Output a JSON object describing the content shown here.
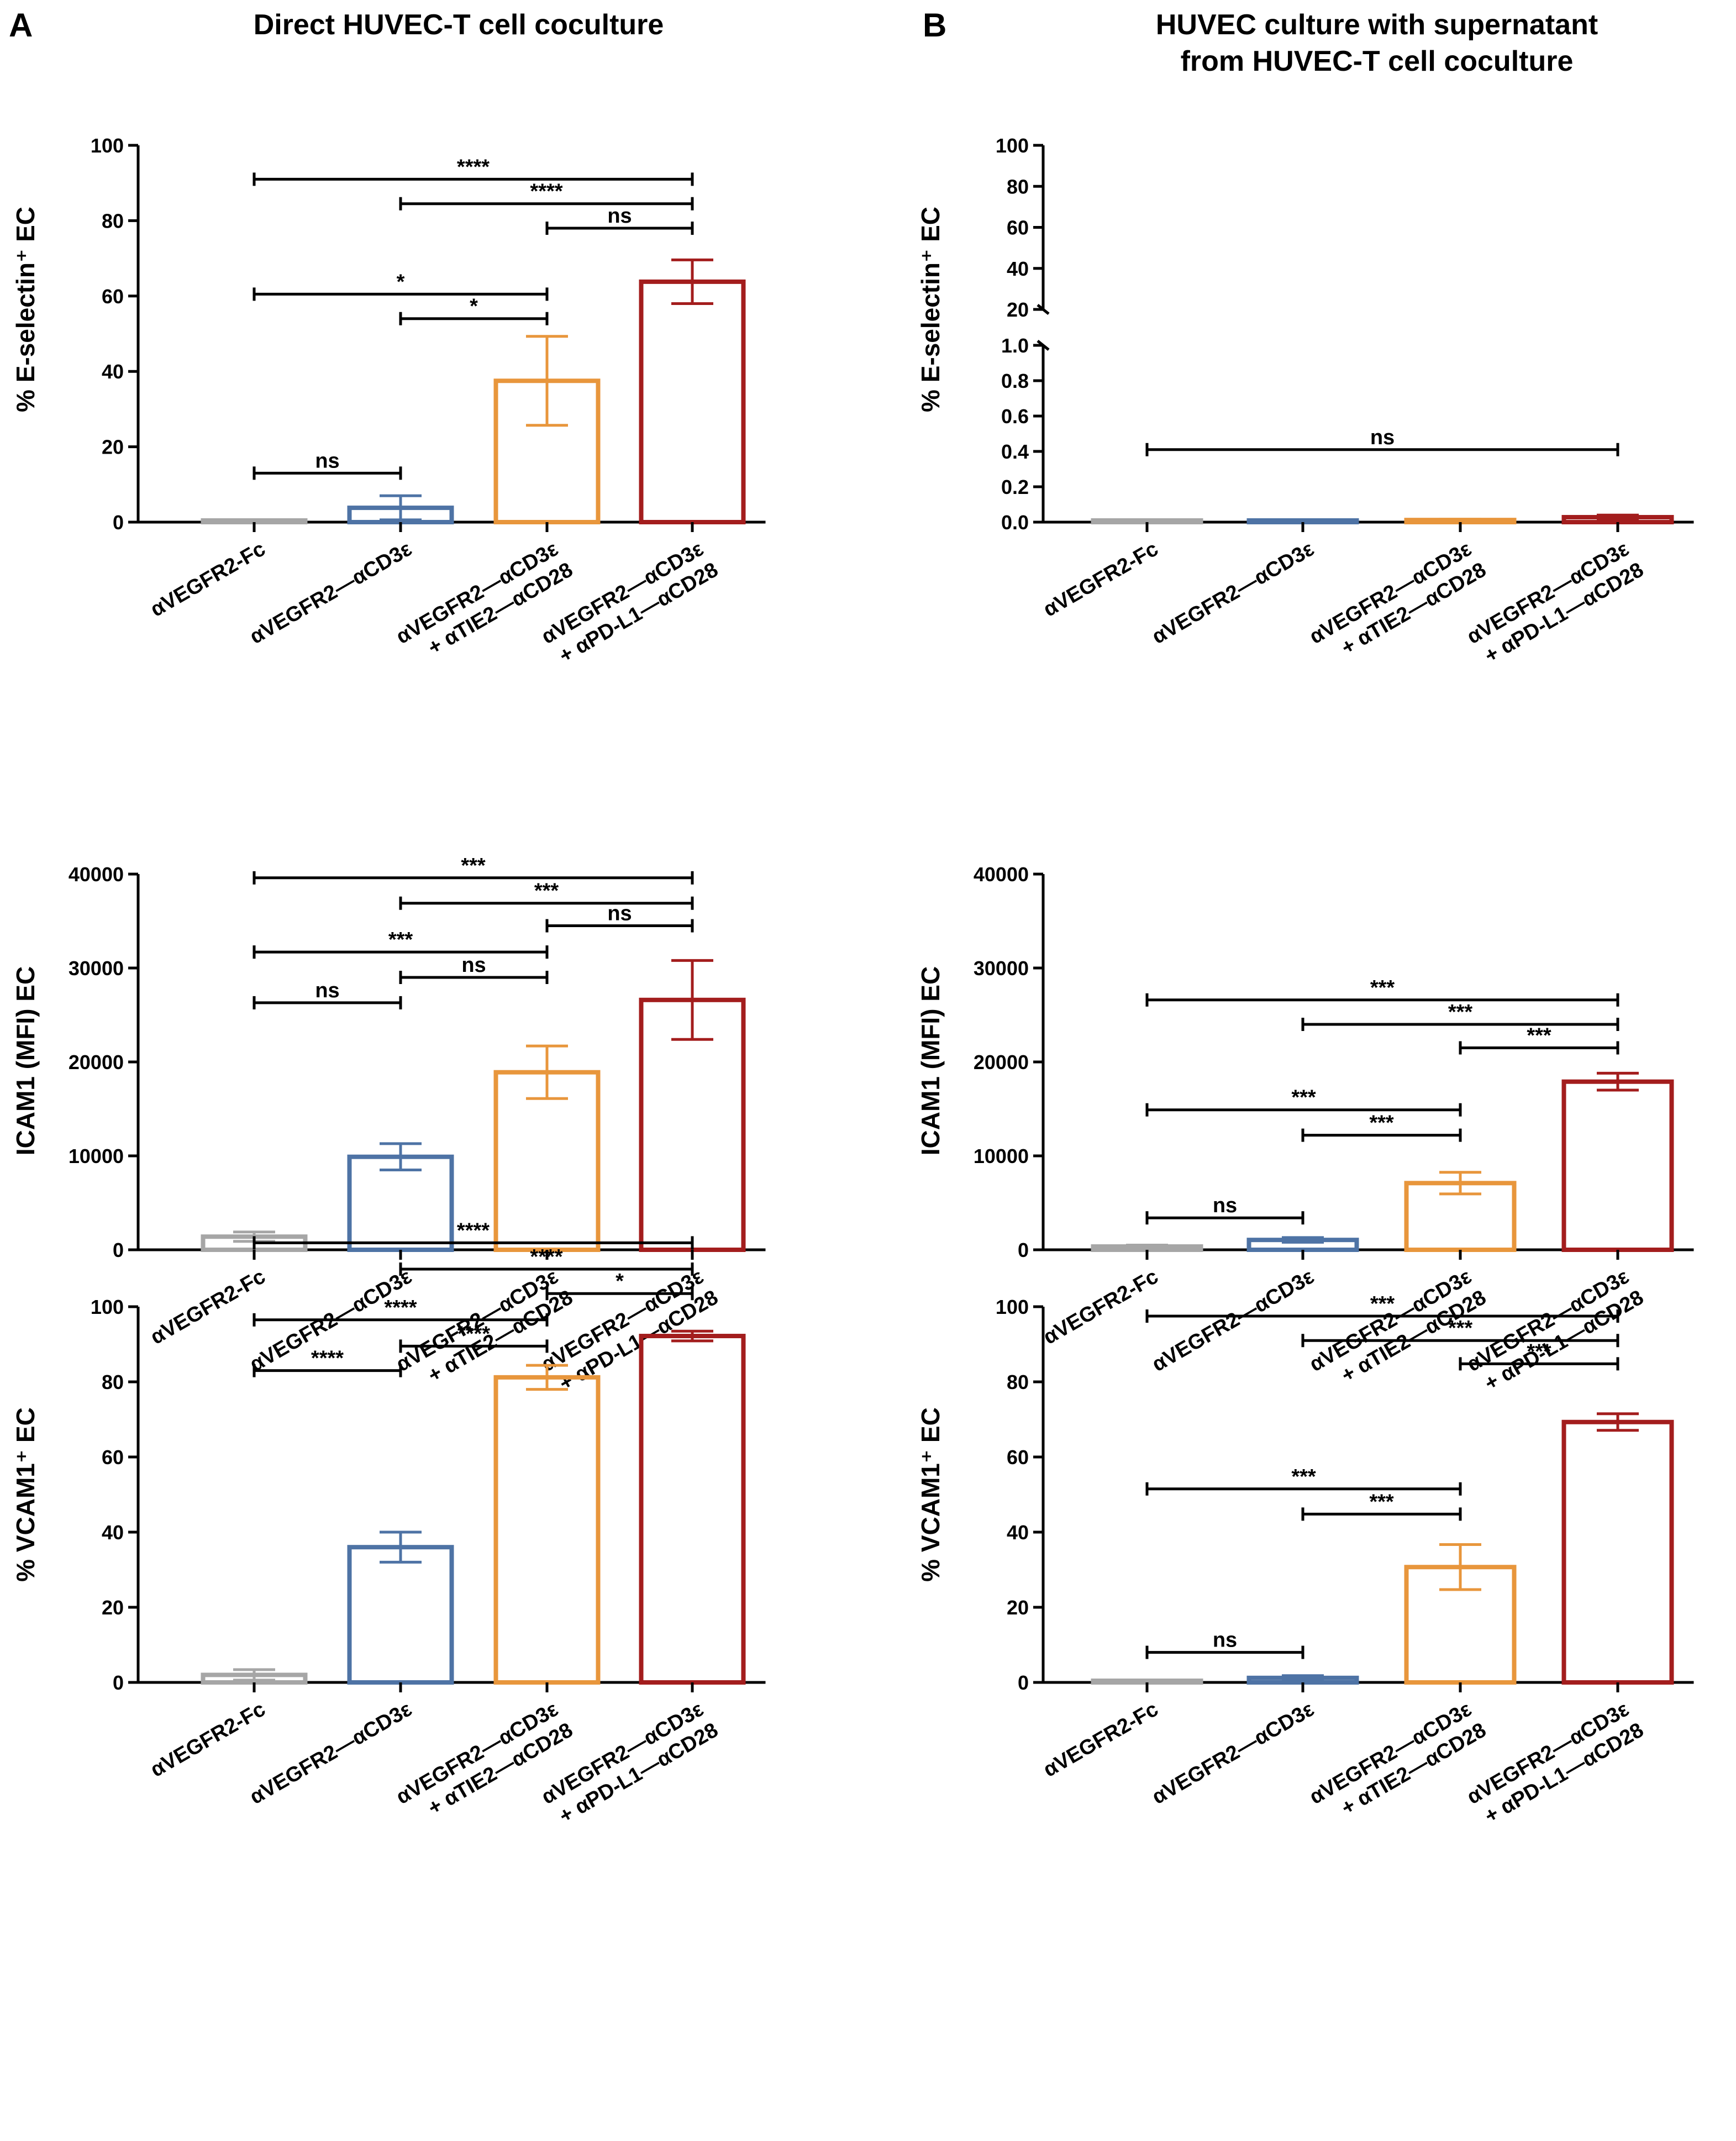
{
  "figure": {
    "panels": [
      {
        "letter": "A",
        "title": [
          "Direct HUVEC-T cell coculture"
        ]
      },
      {
        "letter": "B",
        "title": [
          "HUVEC culture with supernatant",
          "from HUVEC-T cell coculture"
        ]
      }
    ],
    "colors": [
      "#a6a6a6",
      "#4e73a5",
      "#e8963c",
      "#a31d1d"
    ],
    "categories": [
      [
        "αVEGFR2-Fc"
      ],
      [
        "αVEGFR2—αCD3ε"
      ],
      [
        "αVEGFR2—αCD3ε",
        "+ αTIE2—αCD28"
      ],
      [
        "αVEGFR2—αCD3ε",
        "+ αPD-L1—αCD28"
      ]
    ]
  },
  "chart_data": [
    {
      "id": "A1",
      "type": "bar",
      "title": "Direct HUVEC-T cell coculture",
      "ylabel": "% E-selectin⁺ EC",
      "ylim": [
        0,
        100
      ],
      "yticks": [
        0,
        20,
        40,
        60,
        80,
        100
      ],
      "ytick_labels": [
        "0",
        "20",
        "40",
        "60",
        "80",
        "100"
      ],
      "categories": [
        "αVEGFR2-Fc",
        "αVEGFR2—αCD3ε",
        "αVEGFR2—αCD3ε + αTIE2—αCD28",
        "αVEGFR2—αCD3ε + αPD-L1—αCD28"
      ],
      "values": [
        0.3,
        3.8,
        37.5,
        63.8
      ],
      "errors": [
        0.2,
        3.2,
        11.8,
        5.8
      ],
      "significance": [
        {
          "from": 0,
          "to": 3,
          "label": "****",
          "y": 91
        },
        {
          "from": 1,
          "to": 3,
          "label": "****",
          "y": 84.5
        },
        {
          "from": 2,
          "to": 3,
          "label": "ns",
          "y": 78
        },
        {
          "from": 0,
          "to": 2,
          "label": "*",
          "y": 60.5
        },
        {
          "from": 1,
          "to": 2,
          "label": "*",
          "y": 54
        },
        {
          "from": 0,
          "to": 1,
          "label": "ns",
          "y": 13
        }
      ]
    },
    {
      "id": "B1",
      "type": "bar",
      "title": "HUVEC culture with supernatant from HUVEC-T cell coculture",
      "ylabel": "% E-selectin⁺ EC",
      "broken_axis": true,
      "ylim": [
        0,
        100
      ],
      "lower_segment": [
        0,
        1.0
      ],
      "upper_segment": [
        20,
        100
      ],
      "yticks": [
        0,
        0.2,
        0.4,
        0.6,
        0.8,
        1.0,
        20,
        40,
        60,
        80,
        100
      ],
      "ytick_labels": [
        "0.0",
        "0.2",
        "0.4",
        "0.6",
        "0.8",
        "1.0",
        "20",
        "40",
        "60",
        "80",
        "100"
      ],
      "categories": [
        "αVEGFR2-Fc",
        "αVEGFR2—αCD3ε",
        "αVEGFR2—αCD3ε + αTIE2—αCD28",
        "αVEGFR2—αCD3ε + αPD-L1—αCD28"
      ],
      "values": [
        0.002,
        0.004,
        0.012,
        0.028
      ],
      "errors": [
        0.001,
        0.002,
        0.004,
        0.012
      ],
      "significance": [
        {
          "from": 0,
          "to": 3,
          "label": "ns",
          "y": 0.41
        }
      ]
    },
    {
      "id": "A2",
      "type": "bar",
      "ylabel": "ICAM1 (MFI) EC",
      "ylim": [
        0,
        40000
      ],
      "yticks": [
        0,
        10000,
        20000,
        30000,
        40000
      ],
      "ytick_labels": [
        "0",
        "10000",
        "20000",
        "30000",
        "40000"
      ],
      "categories": [
        "αVEGFR2-Fc",
        "αVEGFR2—αCD3ε",
        "αVEGFR2—αCD3ε + αTIE2—αCD28",
        "αVEGFR2—αCD3ε + αPD-L1—αCD28"
      ],
      "values": [
        1400,
        9900,
        18900,
        26600
      ],
      "errors": [
        500,
        1400,
        2800,
        4200
      ],
      "significance": [
        {
          "from": 0,
          "to": 3,
          "label": "***",
          "y": 39600
        },
        {
          "from": 1,
          "to": 3,
          "label": "***",
          "y": 36900
        },
        {
          "from": 2,
          "to": 3,
          "label": "ns",
          "y": 34500
        },
        {
          "from": 0,
          "to": 2,
          "label": "***",
          "y": 31700
        },
        {
          "from": 1,
          "to": 2,
          "label": "ns",
          "y": 29000
        },
        {
          "from": 0,
          "to": 1,
          "label": "ns",
          "y": 26300
        }
      ]
    },
    {
      "id": "B2",
      "type": "bar",
      "ylabel": "ICAM1 (MFI) EC",
      "ylim": [
        0,
        40000
      ],
      "yticks": [
        0,
        10000,
        20000,
        30000,
        40000
      ],
      "ytick_labels": [
        "0",
        "10000",
        "20000",
        "30000",
        "40000"
      ],
      "categories": [
        "αVEGFR2-Fc",
        "αVEGFR2—αCD3ε",
        "αVEGFR2—αCD3ε + αTIE2—αCD28",
        "αVEGFR2—αCD3ε + αPD-L1—αCD28"
      ],
      "values": [
        350,
        1050,
        7100,
        17900
      ],
      "errors": [
        150,
        250,
        1150,
        900
      ],
      "significance": [
        {
          "from": 0,
          "to": 3,
          "label": "***",
          "y": 26600
        },
        {
          "from": 1,
          "to": 3,
          "label": "***",
          "y": 24000
        },
        {
          "from": 2,
          "to": 3,
          "label": "***",
          "y": 21500
        },
        {
          "from": 0,
          "to": 2,
          "label": "***",
          "y": 14900
        },
        {
          "from": 1,
          "to": 2,
          "label": "***",
          "y": 12200
        },
        {
          "from": 0,
          "to": 1,
          "label": "ns",
          "y": 3400
        }
      ]
    },
    {
      "id": "A3",
      "type": "bar",
      "ylabel": "% VCAM1⁺ EC",
      "ylim": [
        0,
        100
      ],
      "yticks": [
        0,
        20,
        40,
        60,
        80,
        100
      ],
      "ytick_labels": [
        "0",
        "20",
        "40",
        "60",
        "80",
        "100"
      ],
      "categories": [
        "αVEGFR2-Fc",
        "αVEGFR2—αCD3ε",
        "αVEGFR2—αCD3ε + αTIE2—αCD28",
        "αVEGFR2—αCD3ε + αPD-L1—αCD28"
      ],
      "values": [
        2.0,
        36.0,
        81.2,
        92.2
      ],
      "errors": [
        1.4,
        4.0,
        3.2,
        1.3
      ],
      "significance": [
        {
          "from": 0,
          "to": 3,
          "label": "****",
          "y": 117
        },
        {
          "from": 1,
          "to": 3,
          "label": "****",
          "y": 110
        },
        {
          "from": 2,
          "to": 3,
          "label": "*",
          "y": 103.5
        },
        {
          "from": 0,
          "to": 2,
          "label": "****",
          "y": 96.5
        },
        {
          "from": 1,
          "to": 2,
          "label": "****",
          "y": 89.5
        },
        {
          "from": 0,
          "to": 1,
          "label": "****",
          "y": 83
        }
      ]
    },
    {
      "id": "B3",
      "type": "bar",
      "ylabel": "% VCAM1⁺ EC",
      "ylim": [
        0,
        100
      ],
      "yticks": [
        0,
        20,
        40,
        60,
        80,
        100
      ],
      "ytick_labels": [
        "0",
        "20",
        "40",
        "60",
        "80",
        "100"
      ],
      "categories": [
        "αVEGFR2-Fc",
        "αVEGFR2—αCD3ε",
        "αVEGFR2—αCD3ε + αTIE2—αCD28",
        "αVEGFR2—αCD3ε + αPD-L1—αCD28"
      ],
      "values": [
        0.3,
        1.2,
        30.7,
        69.3
      ],
      "errors": [
        0.2,
        0.6,
        6.0,
        2.2
      ],
      "significance": [
        {
          "from": 0,
          "to": 3,
          "label": "***",
          "y": 97.5
        },
        {
          "from": 1,
          "to": 3,
          "label": "***",
          "y": 91
        },
        {
          "from": 2,
          "to": 3,
          "label": "***",
          "y": 84.8
        },
        {
          "from": 0,
          "to": 2,
          "label": "***",
          "y": 51.5
        },
        {
          "from": 1,
          "to": 2,
          "label": "***",
          "y": 44.8
        },
        {
          "from": 0,
          "to": 1,
          "label": "ns",
          "y": 8
        }
      ]
    }
  ]
}
